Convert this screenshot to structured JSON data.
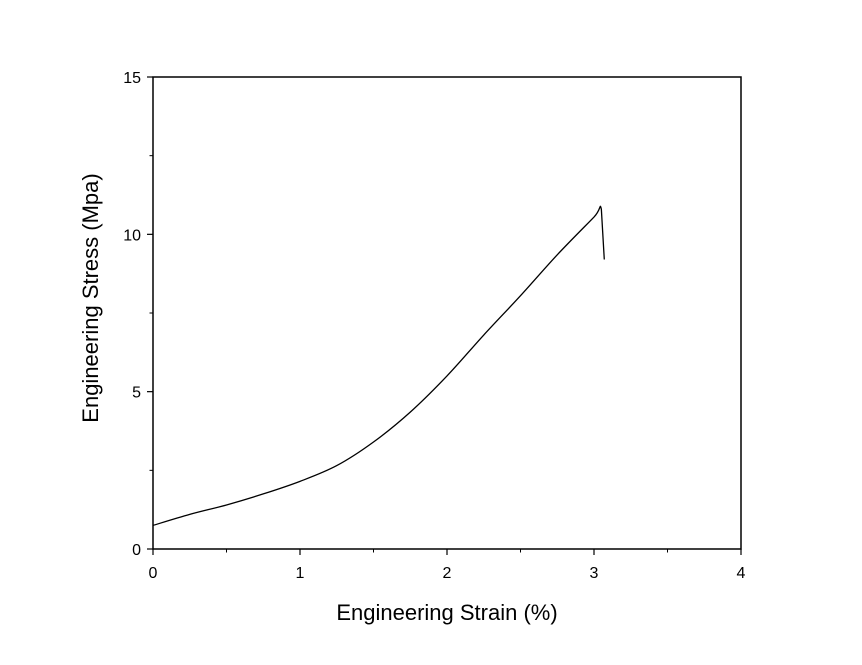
{
  "chart_data": {
    "type": "line",
    "title": "",
    "xlabel": "Engineering Strain (%)",
    "ylabel": "Engineering Stress (Mpa)",
    "xlim": [
      0,
      4
    ],
    "ylim": [
      0,
      15
    ],
    "xticks": [
      0,
      1,
      2,
      3,
      4
    ],
    "xtick_labels": [
      "0",
      "1",
      "2",
      "3",
      "4"
    ],
    "yticks": [
      0,
      5,
      10,
      15
    ],
    "ytick_labels": [
      "0",
      "5",
      "10",
      "15"
    ],
    "grid": false,
    "legend": "none",
    "series": [
      {
        "color": "#000000",
        "x": [
          0,
          0.25,
          0.5,
          0.75,
          1.0,
          1.25,
          1.5,
          1.75,
          2.0,
          2.25,
          2.5,
          2.75,
          3.0,
          3.05,
          3.07
        ],
        "y": [
          0.75,
          1.1,
          1.4,
          1.75,
          2.15,
          2.65,
          3.4,
          4.35,
          5.5,
          6.8,
          8.05,
          9.35,
          10.55,
          10.8,
          9.2
        ]
      }
    ]
  }
}
